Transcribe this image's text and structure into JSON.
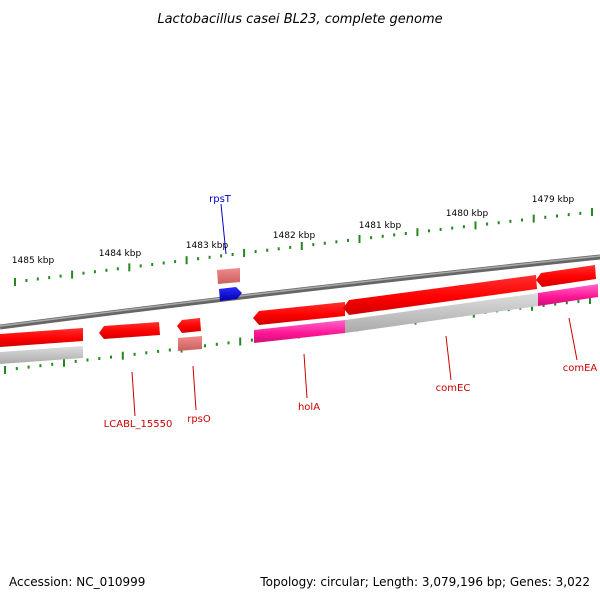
{
  "title": "Lactobacillus casei BL23, complete genome",
  "footer": {
    "accession": "Accession: NC_010999",
    "summary": "Topology: circular; Length: 3,079,196 bp; Genes: 3,022"
  },
  "outer_ticks": [
    {
      "kbp": 1479,
      "label": "1479 kbp"
    },
    {
      "kbp": 1480,
      "label": "1480 kbp"
    },
    {
      "kbp": 1481,
      "label": "1481 kbp"
    },
    {
      "kbp": 1482,
      "label": "1482 kbp"
    },
    {
      "kbp": 1483,
      "label": "1483 kbp"
    },
    {
      "kbp": 1484,
      "label": "1484 kbp"
    },
    {
      "kbp": 1485,
      "label": "1485 kbp"
    }
  ],
  "genes": [
    {
      "id": "rpsT",
      "label": "rpsT",
      "strand": "forward",
      "color": "#0000cc"
    },
    {
      "id": "LCABL_15550",
      "label": "LCABL_15550",
      "strand": "reverse",
      "color": "#cc0000"
    },
    {
      "id": "rpsO",
      "label": "rpsO",
      "strand": "reverse",
      "color": "#cc0000"
    },
    {
      "id": "holA",
      "label": "holA",
      "strand": "reverse",
      "color": "#cc0000"
    },
    {
      "id": "comEC",
      "label": "comEC",
      "strand": "reverse",
      "color": "#cc0000"
    },
    {
      "id": "comEA",
      "label": "comEA",
      "strand": "reverse",
      "color": "#cc0000"
    }
  ],
  "colors": {
    "cds": "#ff0000",
    "gene": "#cccccc",
    "forward_cds": "#0000ff",
    "trna_like": "#ee7777",
    "magenta": "#ff1493",
    "backbone": "#808080",
    "ticks": "#228822"
  }
}
